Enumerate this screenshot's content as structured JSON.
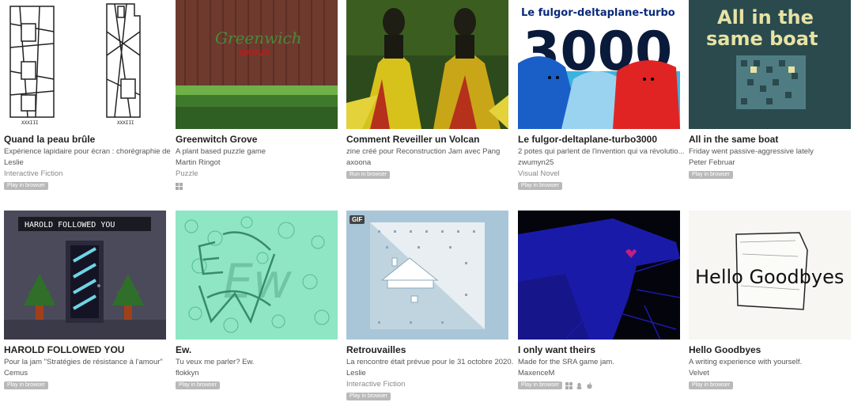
{
  "games": [
    {
      "title": "Quand la peau brûle",
      "description": "Expérience lapidaire pour écran : chorégraphie de",
      "author": "Leslie",
      "genre": "Interactive Fiction",
      "badge": "Play in browser",
      "platforms": []
    },
    {
      "title": "Greenwitch Grove",
      "description": "A plant based puzzle game",
      "author": "Martin Ringot",
      "genre": "Puzzle",
      "badge": "",
      "platforms": [
        "windows-icon"
      ],
      "thumb_text": "Greenwich",
      "thumb_subtext": "GROVE"
    },
    {
      "title": "Comment Reveiller un Volcan",
      "description": "zine créé pour Reconstruction Jam avec Pang",
      "author": "axoona",
      "genre": "",
      "badge": "Run in browser",
      "platforms": []
    },
    {
      "title": "Le fulgor-deltaplane-turbo3000",
      "description": "2 potes qui parlent de l'invention qui va révolutio...",
      "author": "zwumyn25",
      "genre": "Visual Novel",
      "badge": "Play in browser",
      "platforms": [],
      "thumb_text": "Le fulgor-deltaplane-turbo",
      "thumb_number": "3000"
    },
    {
      "title": "All in the same boat",
      "description": "Friday went passive-aggressive lately",
      "author": "Peter Februar",
      "genre": "",
      "badge": "Play in browser",
      "platforms": [],
      "thumb_line1": "All in the",
      "thumb_line2": "same boat"
    },
    {
      "title": "HAROLD FOLLOWED YOU",
      "description": "Pour la jam \"Stratégies de résistance à l'amour\"",
      "author": "Cemus",
      "genre": "",
      "badge": "Play in browser",
      "platforms": [],
      "thumb_text": "HAROLD FOLLOWED YOU"
    },
    {
      "title": "Ew.",
      "description": "Tu veux me parler? Ew.",
      "author": "flokkyn",
      "genre": "",
      "badge": "Play in browser",
      "platforms": [],
      "thumb_text": "Ew"
    },
    {
      "title": "Retrouvailles",
      "description": "La rencontre était prévue pour le 31 octobre 2020.",
      "author": "Leslie",
      "genre": "Interactive Fiction",
      "badge": "Play in browser",
      "platforms": [],
      "gif_label": "GIF"
    },
    {
      "title": "I only want theirs",
      "description": "Made for the SRA game jam.",
      "author": "MaxenceM",
      "genre": "",
      "badge": "Play in browser",
      "platforms": [
        "windows-icon",
        "linux-icon",
        "apple-icon"
      ]
    },
    {
      "title": "Hello Goodbyes",
      "description": "A writing experience with yourself.",
      "author": "Velvet",
      "genre": "",
      "badge": "Play in browser",
      "platforms": [],
      "thumb_text": "Hello Goodbyes"
    }
  ],
  "colors": {
    "badge_bg": "#b9b9b9",
    "title": "#222222",
    "text": "#555555",
    "genre": "#888888"
  }
}
